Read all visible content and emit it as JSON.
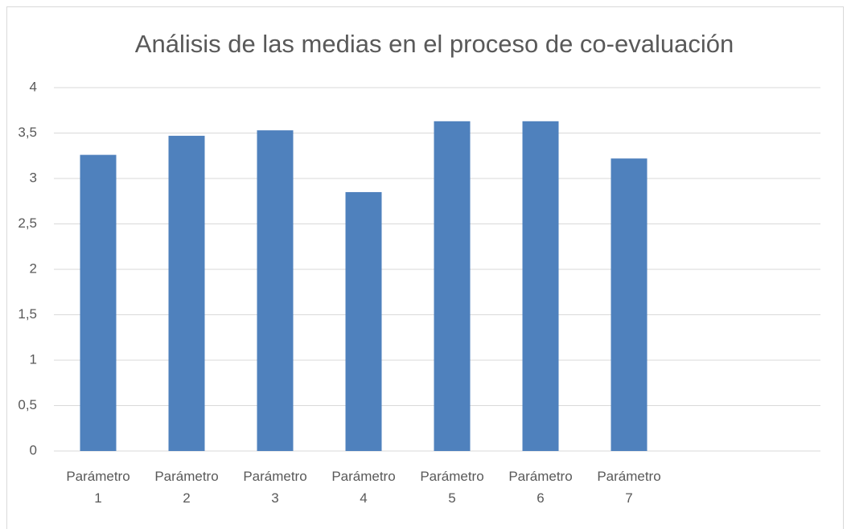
{
  "chart_data": {
    "type": "bar",
    "title": "Análisis de las medias en el proceso de co-evaluación",
    "categories": [
      "Parámetro 1",
      "Parámetro 2",
      "Parámetro 3",
      "Parámetro 4",
      "Parámetro 5",
      "Parámetro 6",
      "Parámetro 7"
    ],
    "values": [
      3.26,
      3.47,
      3.53,
      2.85,
      3.63,
      3.63,
      3.22
    ],
    "color": "#4f81bd",
    "ylim": [
      0,
      4
    ],
    "yticks": [
      0,
      {
        "value": 0.5,
        "label": "0,5"
      },
      1,
      {
        "value": 1.5,
        "label": "1,5"
      },
      2,
      {
        "value": 2.5,
        "label": "2,5"
      },
      3,
      {
        "value": 3.5,
        "label": "3,5"
      },
      4
    ],
    "grid": true
  }
}
